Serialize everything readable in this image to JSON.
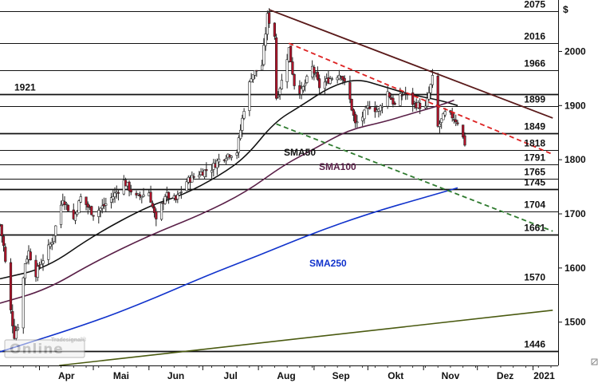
{
  "chart_data": {
    "type": "candlestick",
    "currency_symbol": "$",
    "watermark": "Tradesignal Online",
    "x_axis": {
      "months": [
        "Apr",
        "Mai",
        "Jun",
        "Jul",
        "Aug",
        "Sep",
        "Okt",
        "Nov",
        "Dez",
        "2021"
      ],
      "range": [
        "2020-03-10",
        "2021-01-15"
      ]
    },
    "y_axis": {
      "ticks": [
        "2000",
        "1900",
        "1800",
        "1700",
        "1600",
        "1500"
      ],
      "range": [
        1420,
        2095
      ]
    },
    "price_levels": [
      {
        "value": 2075,
        "label": "2075",
        "label_side": "right",
        "weight": "normal"
      },
      {
        "value": 2016,
        "label": "2016",
        "label_side": "right",
        "weight": "normal"
      },
      {
        "value": 1966,
        "label": "1966",
        "label_side": "right",
        "weight": "normal"
      },
      {
        "value": 1921,
        "label": "1921",
        "label_side": "left",
        "weight": "bold"
      },
      {
        "value": 1899,
        "label": "1899",
        "label_side": "right",
        "weight": "normal"
      },
      {
        "value": 1849,
        "label": "1849",
        "label_side": "right",
        "weight": "bold"
      },
      {
        "value": 1818,
        "label": "1818",
        "label_side": "right",
        "weight": "normal"
      },
      {
        "value": 1791,
        "label": "1791",
        "label_side": "right",
        "weight": "normal"
      },
      {
        "value": 1765,
        "label": "1765",
        "label_side": "right",
        "weight": "normal"
      },
      {
        "value": 1745,
        "label": "1745",
        "label_side": "right",
        "weight": "bold"
      },
      {
        "value": 1704,
        "label": "1704",
        "label_side": "right",
        "weight": "normal"
      },
      {
        "value": 1661,
        "label": "1661",
        "label_side": "right",
        "weight": "bold"
      },
      {
        "value": 1570,
        "label": "1570",
        "label_side": "right",
        "weight": "normal"
      },
      {
        "value": 1446,
        "label": "1446",
        "label_side": "right",
        "weight": "bold"
      }
    ],
    "trendlines": [
      {
        "kind": "resistance",
        "color": "#5a1a1a",
        "style": "solid",
        "from": [
          "2020-08-07",
          2077
        ],
        "to": [
          "2021-01-12",
          1877
        ]
      },
      {
        "kind": "resistance",
        "color": "#dd2222",
        "style": "dashed",
        "from": [
          "2020-08-18",
          2015
        ],
        "to": [
          "2021-01-12",
          1810
        ]
      },
      {
        "kind": "support",
        "color": "#2e7a2e",
        "style": "dashed",
        "from": [
          "2020-08-11",
          1866
        ],
        "to": [
          "2021-01-12",
          1668
        ]
      },
      {
        "kind": "long-term",
        "color": "#4a5a10",
        "style": "solid",
        "from": [
          "2020-04-12",
          1420
        ],
        "to": [
          "2021-01-12",
          1522
        ]
      }
    ],
    "series": [
      {
        "name": "SMA50",
        "color": "#111111",
        "points": [
          [
            "2020-03-10",
            1580
          ],
          [
            "2020-04-05",
            1600
          ],
          [
            "2020-05-01",
            1660
          ],
          [
            "2020-06-01",
            1715
          ],
          [
            "2020-06-20",
            1735
          ],
          [
            "2020-07-10",
            1770
          ],
          [
            "2020-07-25",
            1805
          ],
          [
            "2020-08-10",
            1870
          ],
          [
            "2020-08-25",
            1900
          ],
          [
            "2020-09-10",
            1935
          ],
          [
            "2020-09-25",
            1950
          ],
          [
            "2020-10-10",
            1935
          ],
          [
            "2020-10-25",
            1920
          ],
          [
            "2020-11-10",
            1910
          ],
          [
            "2020-11-20",
            1900
          ]
        ]
      },
      {
        "name": "SMA100",
        "color": "#5a2048",
        "points": [
          [
            "2020-03-10",
            1535
          ],
          [
            "2020-04-05",
            1560
          ],
          [
            "2020-05-01",
            1610
          ],
          [
            "2020-06-01",
            1660
          ],
          [
            "2020-07-01",
            1700
          ],
          [
            "2020-07-25",
            1740
          ],
          [
            "2020-08-15",
            1790
          ],
          [
            "2020-09-01",
            1820
          ],
          [
            "2020-09-20",
            1855
          ],
          [
            "2020-10-10",
            1870
          ],
          [
            "2020-10-25",
            1885
          ],
          [
            "2020-11-10",
            1900
          ],
          [
            "2020-11-18",
            1910
          ]
        ]
      },
      {
        "name": "SMA250",
        "color": "#1133cc",
        "points": [
          [
            "2020-03-10",
            1445
          ],
          [
            "2020-05-01",
            1500
          ],
          [
            "2020-06-01",
            1540
          ],
          [
            "2020-07-01",
            1583
          ],
          [
            "2020-08-01",
            1623
          ],
          [
            "2020-09-01",
            1665
          ],
          [
            "2020-10-01",
            1700
          ],
          [
            "2020-11-01",
            1730
          ],
          [
            "2020-11-20",
            1748
          ]
        ]
      }
    ],
    "ohlc_close_path": [
      [
        "2020-03-10",
        1680
      ],
      [
        "2020-03-12",
        1640
      ],
      [
        "2020-03-16",
        1520
      ],
      [
        "2020-03-18",
        1475
      ],
      [
        "2020-03-20",
        1495
      ],
      [
        "2020-03-24",
        1610
      ],
      [
        "2020-03-26",
        1630
      ],
      [
        "2020-03-30",
        1590
      ],
      [
        "2020-04-02",
        1610
      ],
      [
        "2020-04-08",
        1650
      ],
      [
        "2020-04-14",
        1730
      ],
      [
        "2020-04-20",
        1690
      ],
      [
        "2020-04-24",
        1730
      ],
      [
        "2020-05-01",
        1700
      ],
      [
        "2020-05-07",
        1715
      ],
      [
        "2020-05-14",
        1740
      ],
      [
        "2020-05-18",
        1760
      ],
      [
        "2020-05-25",
        1730
      ],
      [
        "2020-06-01",
        1740
      ],
      [
        "2020-06-05",
        1685
      ],
      [
        "2020-06-10",
        1735
      ],
      [
        "2020-06-16",
        1725
      ],
      [
        "2020-06-22",
        1760
      ],
      [
        "2020-06-29",
        1775
      ],
      [
        "2020-07-06",
        1785
      ],
      [
        "2020-07-10",
        1800
      ],
      [
        "2020-07-15",
        1810
      ],
      [
        "2020-07-20",
        1815
      ],
      [
        "2020-07-24",
        1895
      ],
      [
        "2020-07-28",
        1955
      ],
      [
        "2020-08-03",
        1975
      ],
      [
        "2020-08-06",
        2065
      ],
      [
        "2020-08-10",
        2030
      ],
      [
        "2020-08-11",
        1915
      ],
      [
        "2020-08-14",
        1945
      ],
      [
        "2020-08-18",
        2005
      ],
      [
        "2020-08-21",
        1940
      ],
      [
        "2020-08-25",
        1925
      ],
      [
        "2020-08-31",
        1970
      ],
      [
        "2020-09-04",
        1935
      ],
      [
        "2020-09-10",
        1950
      ],
      [
        "2020-09-16",
        1960
      ],
      [
        "2020-09-21",
        1910
      ],
      [
        "2020-09-24",
        1865
      ],
      [
        "2020-09-28",
        1880
      ],
      [
        "2020-10-02",
        1900
      ],
      [
        "2020-10-07",
        1890
      ],
      [
        "2020-10-12",
        1925
      ],
      [
        "2020-10-16",
        1900
      ],
      [
        "2020-10-21",
        1925
      ],
      [
        "2020-10-26",
        1905
      ],
      [
        "2020-11-02",
        1895
      ],
      [
        "2020-11-06",
        1950
      ],
      [
        "2020-11-09",
        1860
      ],
      [
        "2020-11-13",
        1885
      ],
      [
        "2020-11-17",
        1880
      ],
      [
        "2020-11-20",
        1870
      ],
      [
        "2020-11-24",
        1830
      ]
    ]
  }
}
